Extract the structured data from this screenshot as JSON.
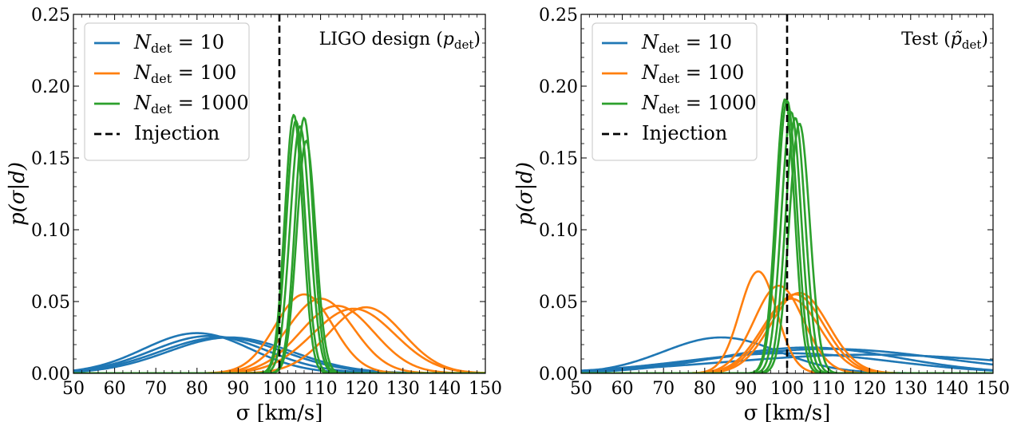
{
  "chart_data": [
    {
      "type": "line",
      "title": "LIGO design (p_det)",
      "title_parts": {
        "main": "LIGO design (",
        "var": "p",
        "sub": "det",
        "close": ")"
      },
      "xlabel": "σ [km/s]",
      "ylabel": "p(σ|d)",
      "xlim": [
        50,
        150
      ],
      "ylim": [
        0,
        0.25
      ],
      "xticks": [
        50,
        60,
        70,
        80,
        90,
        100,
        110,
        120,
        130,
        140,
        150
      ],
      "yticks": [
        "0.00",
        "0.05",
        "0.10",
        "0.15",
        "0.20",
        "0.25"
      ],
      "grid": false,
      "legend_position": "top-left",
      "injection": 100,
      "legend": [
        {
          "label": "N_det = 10",
          "var": "N",
          "sub": "det",
          "rhs": " = 10",
          "color": "#1f77b4",
          "dash": false
        },
        {
          "label": "N_det = 100",
          "var": "N",
          "sub": "det",
          "rhs": " = 100",
          "color": "#ff7f0e",
          "dash": false
        },
        {
          "label": "N_det = 1000",
          "var": "N",
          "sub": "det",
          "rhs": " = 1000",
          "color": "#2ca02c",
          "dash": false
        },
        {
          "label": "Injection",
          "var": "",
          "sub": "",
          "rhs": "Injection",
          "color": "#000000",
          "dash": true
        }
      ],
      "series": [
        {
          "group": "N_det = 10",
          "color": "#1f77b4",
          "curves": [
            {
              "mu": 80,
              "sigma": 13,
              "peak": 0.028
            },
            {
              "mu": 83,
              "sigma": 14,
              "peak": 0.026
            },
            {
              "mu": 86,
              "sigma": 15,
              "peak": 0.025
            },
            {
              "mu": 88,
              "sigma": 15,
              "peak": 0.025
            }
          ]
        },
        {
          "group": "N_det = 100",
          "color": "#ff7f0e",
          "curves": [
            {
              "mu": 106,
              "sigma": 7,
              "peak": 0.055
            },
            {
              "mu": 110,
              "sigma": 8,
              "peak": 0.052
            },
            {
              "mu": 114,
              "sigma": 9,
              "peak": 0.047
            },
            {
              "mu": 118,
              "sigma": 10,
              "peak": 0.045
            },
            {
              "mu": 121,
              "sigma": 9,
              "peak": 0.046
            }
          ]
        },
        {
          "group": "N_det = 1000",
          "color": "#2ca02c",
          "curves": [
            {
              "mu": 103.5,
              "sigma": 2.2,
              "peak": 0.18
            },
            {
              "mu": 104,
              "sigma": 2.3,
              "peak": 0.176
            },
            {
              "mu": 106,
              "sigma": 2.2,
              "peak": 0.178
            },
            {
              "mu": 106.5,
              "sigma": 2.3,
              "peak": 0.162
            },
            {
              "mu": 105,
              "sigma": 2.4,
              "peak": 0.172
            }
          ]
        }
      ]
    },
    {
      "type": "line",
      "title": "Test (p̃_det)",
      "title_parts": {
        "main": "Test (",
        "var": "p̃",
        "sub": "det",
        "close": ")"
      },
      "xlabel": "σ [km/s]",
      "ylabel": "p(σ|d)",
      "xlim": [
        50,
        150
      ],
      "ylim": [
        0,
        0.25
      ],
      "xticks": [
        50,
        60,
        70,
        80,
        90,
        100,
        110,
        120,
        130,
        140,
        150
      ],
      "yticks": [
        "0.00",
        "0.05",
        "0.10",
        "0.15",
        "0.20",
        "0.25"
      ],
      "grid": false,
      "legend_position": "top-left",
      "injection": 100,
      "legend": [
        {
          "label": "N_det = 10",
          "var": "N",
          "sub": "det",
          "rhs": " = 10",
          "color": "#1f77b4",
          "dash": false
        },
        {
          "label": "N_det = 100",
          "var": "N",
          "sub": "det",
          "rhs": " = 100",
          "color": "#ff7f0e",
          "dash": false
        },
        {
          "label": "N_det = 1000",
          "var": "N",
          "sub": "det",
          "rhs": " = 1000",
          "color": "#2ca02c",
          "dash": false
        },
        {
          "label": "Injection",
          "var": "",
          "sub": "",
          "rhs": "Injection",
          "color": "#000000",
          "dash": true
        }
      ],
      "series": [
        {
          "group": "N_det = 10",
          "color": "#1f77b4",
          "curves": [
            {
              "mu": 84,
              "sigma": 14,
              "peak": 0.025
            },
            {
              "mu": 110,
              "sigma": 28,
              "peak": 0.017
            },
            {
              "mu": 120,
              "sigma": 35,
              "peak": 0.013
            },
            {
              "mu": 105,
              "sigma": 22,
              "peak": 0.018
            },
            {
              "mu": 100,
              "sigma": 25,
              "peak": 0.014
            }
          ]
        },
        {
          "group": "N_det = 100",
          "color": "#ff7f0e",
          "curves": [
            {
              "mu": 93,
              "sigma": 4.5,
              "peak": 0.071
            },
            {
              "mu": 98,
              "sigma": 6,
              "peak": 0.061
            },
            {
              "mu": 102,
              "sigma": 7,
              "peak": 0.055
            },
            {
              "mu": 103,
              "sigma": 7,
              "peak": 0.056
            },
            {
              "mu": 101,
              "sigma": 7,
              "peak": 0.052
            }
          ]
        },
        {
          "group": "N_det = 1000",
          "color": "#2ca02c",
          "curves": [
            {
              "mu": 99.5,
              "sigma": 2.3,
              "peak": 0.191
            },
            {
              "mu": 100,
              "sigma": 2.4,
              "peak": 0.19
            },
            {
              "mu": 101,
              "sigma": 2.4,
              "peak": 0.182
            },
            {
              "mu": 102,
              "sigma": 2.4,
              "peak": 0.178
            },
            {
              "mu": 103,
              "sigma": 2.5,
              "peak": 0.174
            }
          ]
        }
      ]
    }
  ]
}
